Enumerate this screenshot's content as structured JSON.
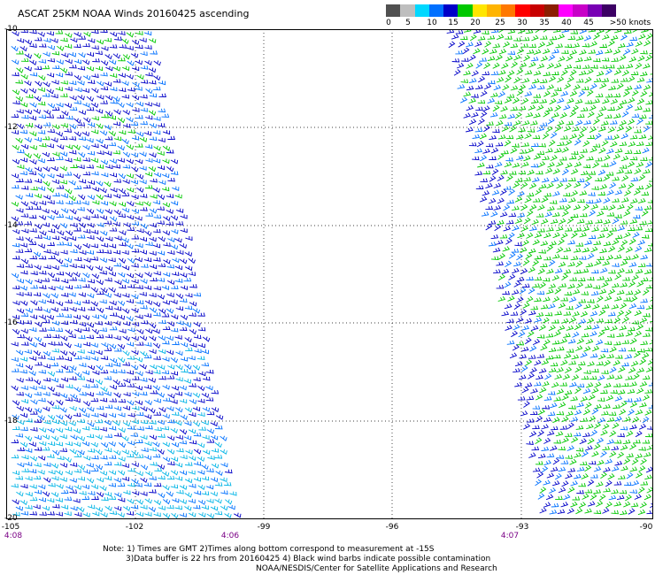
{
  "title": "ASCAT 25KM NOAA Winds 20160425 ascending",
  "colorbar": {
    "colors": [
      "#505050",
      "#bebebe",
      "#00d8ff",
      "#0070ff",
      "#0000c8",
      "#00c800",
      "#ffe600",
      "#ffb400",
      "#ff7800",
      "#ff0000",
      "#c80000",
      "#8c1e00",
      "#ff00ff",
      "#c800c8",
      "#7800b4",
      "#3c0064"
    ],
    "labels": [
      "0",
      "5",
      "10",
      "15",
      "20",
      "25",
      "30",
      "35",
      "40",
      "45",
      ">50 knots"
    ]
  },
  "axes": {
    "lat_labels": [
      "-10",
      "-12",
      "-14",
      "-16",
      "-18",
      "-20"
    ],
    "lon_labels": [
      "-105",
      "-102",
      "-99",
      "-96",
      "-93",
      "-90"
    ]
  },
  "times": [
    "4:08",
    "4:06",
    "4:07"
  ],
  "notes": [
    "Note: 1) Times are GMT 2)Times along bottom correspond to measurement at -15S",
    "3)Data buffer is 22 hrs from 20160425 4) Black wind barbs indicate possible contamination",
    "NOAA/NESDIS/Center for Satellite Applications and Research"
  ],
  "swaths": [
    {
      "name": "west-swath",
      "dominant_speed_knots": "10-15",
      "colors": [
        "#0000c8",
        "#0070ff",
        "#00d8ff",
        "#00c800"
      ]
    },
    {
      "name": "east-swath",
      "dominant_speed_knots": "15-20",
      "colors": [
        "#00c800",
        "#0000c8",
        "#0070ff"
      ]
    }
  ]
}
